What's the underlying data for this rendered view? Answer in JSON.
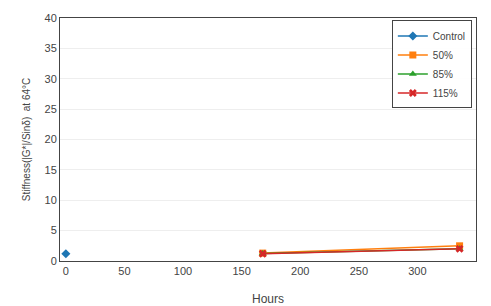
{
  "chart_data": {
    "type": "line",
    "xlabel": "Hours",
    "ylabel": "Stiffness(|G*|/Sinδ)  at 64°C",
    "xlim": [
      -5,
      350
    ],
    "ylim": [
      0,
      40
    ],
    "xticks": [
      0,
      50,
      100,
      150,
      200,
      250,
      300
    ],
    "yticks": [
      0,
      5,
      10,
      15,
      20,
      25,
      30,
      35,
      40
    ],
    "grid": "y",
    "legend": "upper right",
    "series": [
      {
        "name": "Control",
        "marker": "diamond",
        "x": [
          0
        ],
        "values": [
          1.2
        ]
      },
      {
        "name": "50%",
        "marker": "square",
        "x": [
          168,
          336
        ],
        "values": [
          1.3,
          2.5
        ]
      },
      {
        "name": "85%",
        "marker": "triangle-up",
        "x": [
          168,
          336
        ],
        "values": [
          1.25,
          2.0
        ]
      },
      {
        "name": "115%",
        "marker": "x",
        "x": [
          168,
          336
        ],
        "values": [
          1.2,
          2.0
        ]
      }
    ]
  }
}
